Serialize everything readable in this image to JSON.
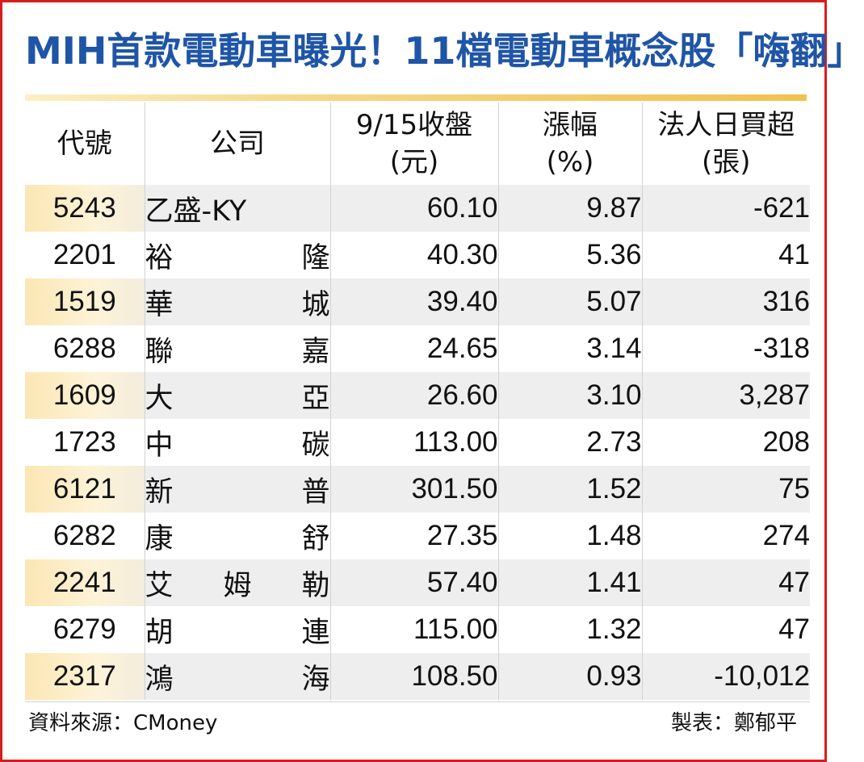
{
  "title": "MIH首款電動車曝光！11檔電動車概念股「嗨翻」",
  "table": {
    "headers": [
      {
        "line1": "代號",
        "line2": ""
      },
      {
        "line1": "公司",
        "line2": ""
      },
      {
        "line1": "9/15收盤",
        "line2": "(元)"
      },
      {
        "line1": "漲幅",
        "line2": "(%)"
      },
      {
        "line1": "法人日買超",
        "line2": "(張)"
      }
    ],
    "rows": [
      {
        "code": "5243",
        "company": "乙盛-KY",
        "close": "60.10",
        "change": "9.87",
        "net_buy": "-621"
      },
      {
        "code": "2201",
        "company": "裕隆",
        "close": "40.30",
        "change": "5.36",
        "net_buy": "41"
      },
      {
        "code": "1519",
        "company": "華城",
        "close": "39.40",
        "change": "5.07",
        "net_buy": "316"
      },
      {
        "code": "6288",
        "company": "聯嘉",
        "close": "24.65",
        "change": "3.14",
        "net_buy": "-318"
      },
      {
        "code": "1609",
        "company": "大亞",
        "close": "26.60",
        "change": "3.10",
        "net_buy": "3,287"
      },
      {
        "code": "1723",
        "company": "中碳",
        "close": "113.00",
        "change": "2.73",
        "net_buy": "208"
      },
      {
        "code": "6121",
        "company": "新普",
        "close": "301.50",
        "change": "1.52",
        "net_buy": "75"
      },
      {
        "code": "6282",
        "company": "康舒",
        "close": "27.35",
        "change": "1.48",
        "net_buy": "274"
      },
      {
        "code": "2241",
        "company": "艾姆勒",
        "close": "57.40",
        "change": "1.41",
        "net_buy": "47"
      },
      {
        "code": "6279",
        "company": "胡連",
        "close": "115.00",
        "change": "1.32",
        "net_buy": "47"
      },
      {
        "code": "2317",
        "company": "鴻海",
        "close": "108.50",
        "change": "0.93",
        "net_buy": "-10,012"
      }
    ]
  },
  "footer": {
    "source": "資料來源：CMoney",
    "credit": "製表：鄭郁平"
  },
  "colors": {
    "title": "#1f55a6",
    "border": "#d81c1c",
    "title_rule": "#f0c24e",
    "row_stripe": "#eeeeee",
    "code_highlight": "#fbe7b4"
  }
}
